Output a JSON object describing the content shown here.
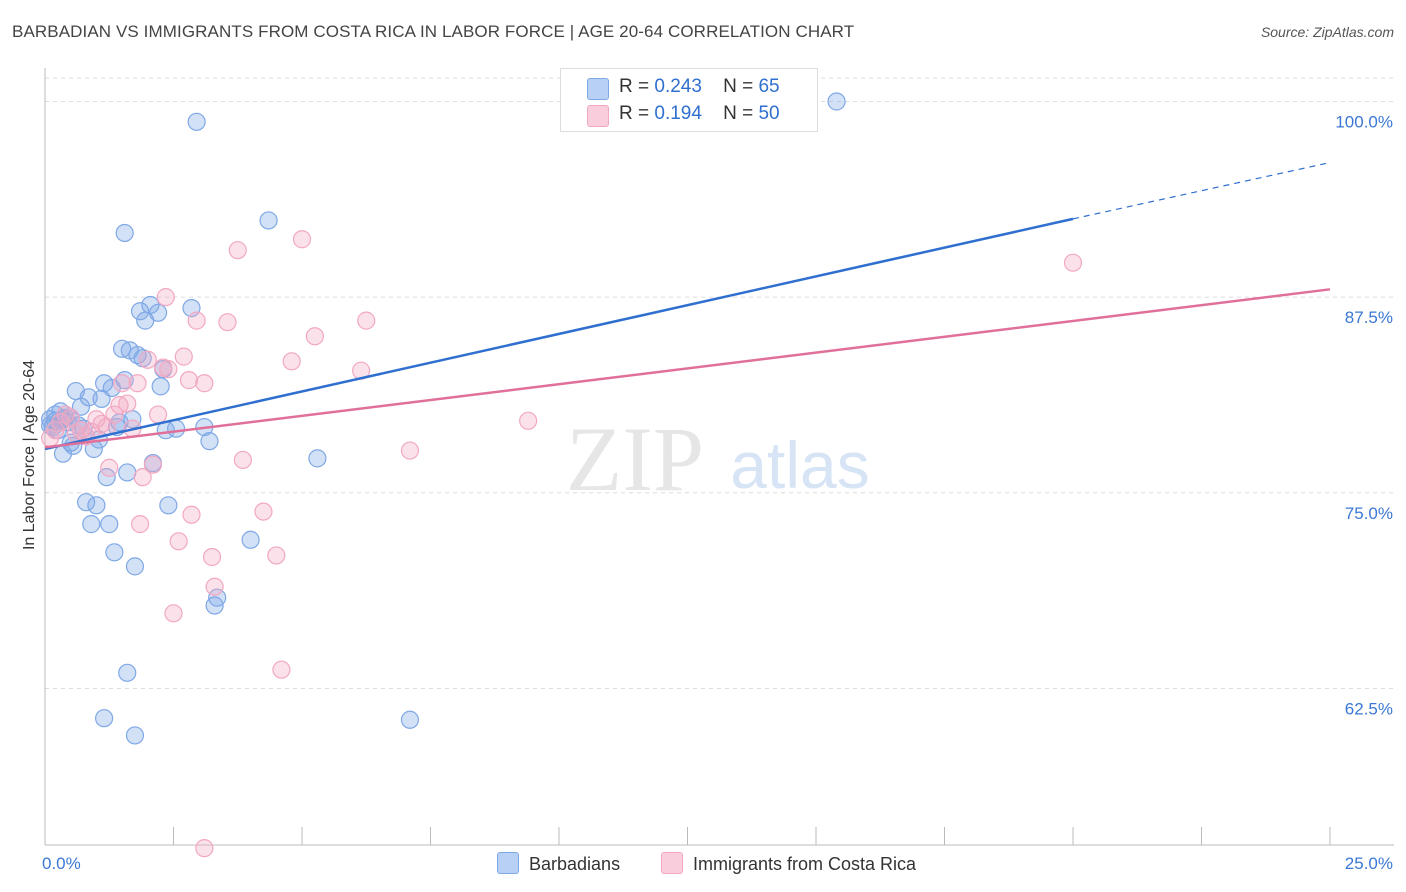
{
  "title": "BARBADIAN VS IMMIGRANTS FROM COSTA RICA IN LABOR FORCE | AGE 20-64 CORRELATION CHART",
  "source": "Source: ZipAtlas.com",
  "watermark": {
    "zip": "ZIP",
    "atlas": "atlas"
  },
  "legend": [
    {
      "r_label": "R =",
      "r_value": "0.243",
      "n_label": "N =",
      "n_value": "65"
    },
    {
      "r_label": "R =",
      "r_value": "0.194",
      "n_label": "N =",
      "n_value": "50"
    }
  ],
  "chart_data": {
    "type": "scatter",
    "title": "BARBADIAN VS IMMIGRANTS FROM COSTA RICA IN LABOR FORCE | AGE 20-64 CORRELATION CHART",
    "xlabel": "",
    "ylabel": "In Labor Force | Age 20-64",
    "xlim": [
      0,
      25
    ],
    "ylim": [
      52.5,
      101.5
    ],
    "x_tick_labels": [
      "0.0%",
      "25.0%"
    ],
    "y_ticks": [
      62.5,
      75.0,
      87.5,
      100.0
    ],
    "y_tick_labels": [
      "62.5%",
      "75.0%",
      "87.5%",
      "100.0%"
    ],
    "legend_position": "top-center",
    "series": [
      {
        "name": "Barbadians",
        "color": "#7fa8e6",
        "line_color": "#2f6fcf",
        "trend": {
          "x0": 0,
          "y0": 77.8,
          "x1": 20,
          "y1": 92.5,
          "x_dash_end": 25,
          "y_dash_end": 96.1
        },
        "points": [
          [
            0.1,
            79.7
          ],
          [
            0.15,
            79.2
          ],
          [
            0.2,
            79.6
          ],
          [
            0.25,
            79.0
          ],
          [
            0.3,
            80.2
          ],
          [
            0.35,
            77.5
          ],
          [
            0.4,
            79.8
          ],
          [
            0.45,
            79.5
          ],
          [
            0.5,
            78.2
          ],
          [
            0.55,
            78.0
          ],
          [
            0.6,
            81.5
          ],
          [
            0.65,
            79.3
          ],
          [
            0.7,
            80.5
          ],
          [
            0.75,
            79.1
          ],
          [
            0.8,
            74.4
          ],
          [
            0.85,
            81.1
          ],
          [
            0.9,
            73.0
          ],
          [
            0.95,
            77.8
          ],
          [
            1.0,
            74.2
          ],
          [
            1.05,
            78.4
          ],
          [
            1.1,
            81.0
          ],
          [
            1.15,
            82.0
          ],
          [
            1.2,
            76.0
          ],
          [
            1.25,
            73.0
          ],
          [
            1.3,
            81.7
          ],
          [
            1.35,
            71.2
          ],
          [
            1.4,
            79.2
          ],
          [
            1.45,
            79.5
          ],
          [
            1.5,
            84.2
          ],
          [
            1.55,
            82.2
          ],
          [
            1.6,
            76.3
          ],
          [
            1.65,
            84.1
          ],
          [
            1.7,
            79.7
          ],
          [
            1.75,
            70.3
          ],
          [
            1.8,
            83.8
          ],
          [
            1.85,
            86.6
          ],
          [
            1.9,
            83.6
          ],
          [
            1.95,
            86.0
          ],
          [
            2.05,
            87.0
          ],
          [
            2.1,
            76.9
          ],
          [
            2.2,
            86.5
          ],
          [
            2.25,
            81.8
          ],
          [
            2.3,
            82.9
          ],
          [
            2.35,
            79.0
          ],
          [
            2.4,
            74.2
          ],
          [
            2.55,
            79.1
          ],
          [
            2.85,
            86.8
          ],
          [
            2.95,
            98.7
          ],
          [
            3.1,
            79.2
          ],
          [
            3.2,
            78.3
          ],
          [
            3.3,
            67.8
          ],
          [
            3.35,
            68.3
          ],
          [
            4.0,
            72.0
          ],
          [
            4.35,
            92.4
          ],
          [
            5.3,
            77.2
          ],
          [
            7.1,
            60.5
          ],
          [
            15.4,
            100.0
          ],
          [
            1.55,
            91.6
          ],
          [
            1.6,
            63.5
          ],
          [
            1.15,
            60.6
          ],
          [
            1.75,
            59.5
          ],
          [
            0.1,
            79.3
          ],
          [
            0.2,
            80.0
          ],
          [
            0.35,
            79.7
          ],
          [
            0.5,
            79.8
          ]
        ]
      },
      {
        "name": "Immigrants from Costa Rica",
        "color": "#f2a8c2",
        "line_color": "#e0709a",
        "trend": {
          "x0": 0,
          "y0": 77.9,
          "x1": 25,
          "y1": 88.0
        },
        "points": [
          [
            0.1,
            78.5
          ],
          [
            0.2,
            79.0
          ],
          [
            0.3,
            79.5
          ],
          [
            0.4,
            80.0
          ],
          [
            0.5,
            79.8
          ],
          [
            0.6,
            78.8
          ],
          [
            0.7,
            79.0
          ],
          [
            0.8,
            78.6
          ],
          [
            0.9,
            78.9
          ],
          [
            1.0,
            79.7
          ],
          [
            1.1,
            79.4
          ],
          [
            1.2,
            79.2
          ],
          [
            1.25,
            76.6
          ],
          [
            1.35,
            80.0
          ],
          [
            1.45,
            80.6
          ],
          [
            1.5,
            82.0
          ],
          [
            1.6,
            80.7
          ],
          [
            1.7,
            79.1
          ],
          [
            1.8,
            82.0
          ],
          [
            1.85,
            73.0
          ],
          [
            1.9,
            76.0
          ],
          [
            2.0,
            83.5
          ],
          [
            2.1,
            76.8
          ],
          [
            2.2,
            80.0
          ],
          [
            2.3,
            83.0
          ],
          [
            2.35,
            87.5
          ],
          [
            2.4,
            82.9
          ],
          [
            2.5,
            67.3
          ],
          [
            2.6,
            71.9
          ],
          [
            2.7,
            83.7
          ],
          [
            2.8,
            82.2
          ],
          [
            2.85,
            73.6
          ],
          [
            2.95,
            86.0
          ],
          [
            3.1,
            82.0
          ],
          [
            3.25,
            70.9
          ],
          [
            3.3,
            69.0
          ],
          [
            3.55,
            85.9
          ],
          [
            3.75,
            90.5
          ],
          [
            3.85,
            77.1
          ],
          [
            4.25,
            73.8
          ],
          [
            4.5,
            71.0
          ],
          [
            4.6,
            63.7
          ],
          [
            4.8,
            83.4
          ],
          [
            5.0,
            91.2
          ],
          [
            5.25,
            85.0
          ],
          [
            6.25,
            86.0
          ],
          [
            6.15,
            82.8
          ],
          [
            7.1,
            77.7
          ],
          [
            9.4,
            79.6
          ],
          [
            20.0,
            89.7
          ]
        ]
      },
      {
        "name": "Immigrants from Costa Rica (low)",
        "color": "#f2a8c2",
        "points": [
          [
            3.1,
            52.3
          ]
        ]
      }
    ]
  },
  "bottom_legend": [
    "Barbadians",
    "Immigrants from Costa Rica"
  ]
}
